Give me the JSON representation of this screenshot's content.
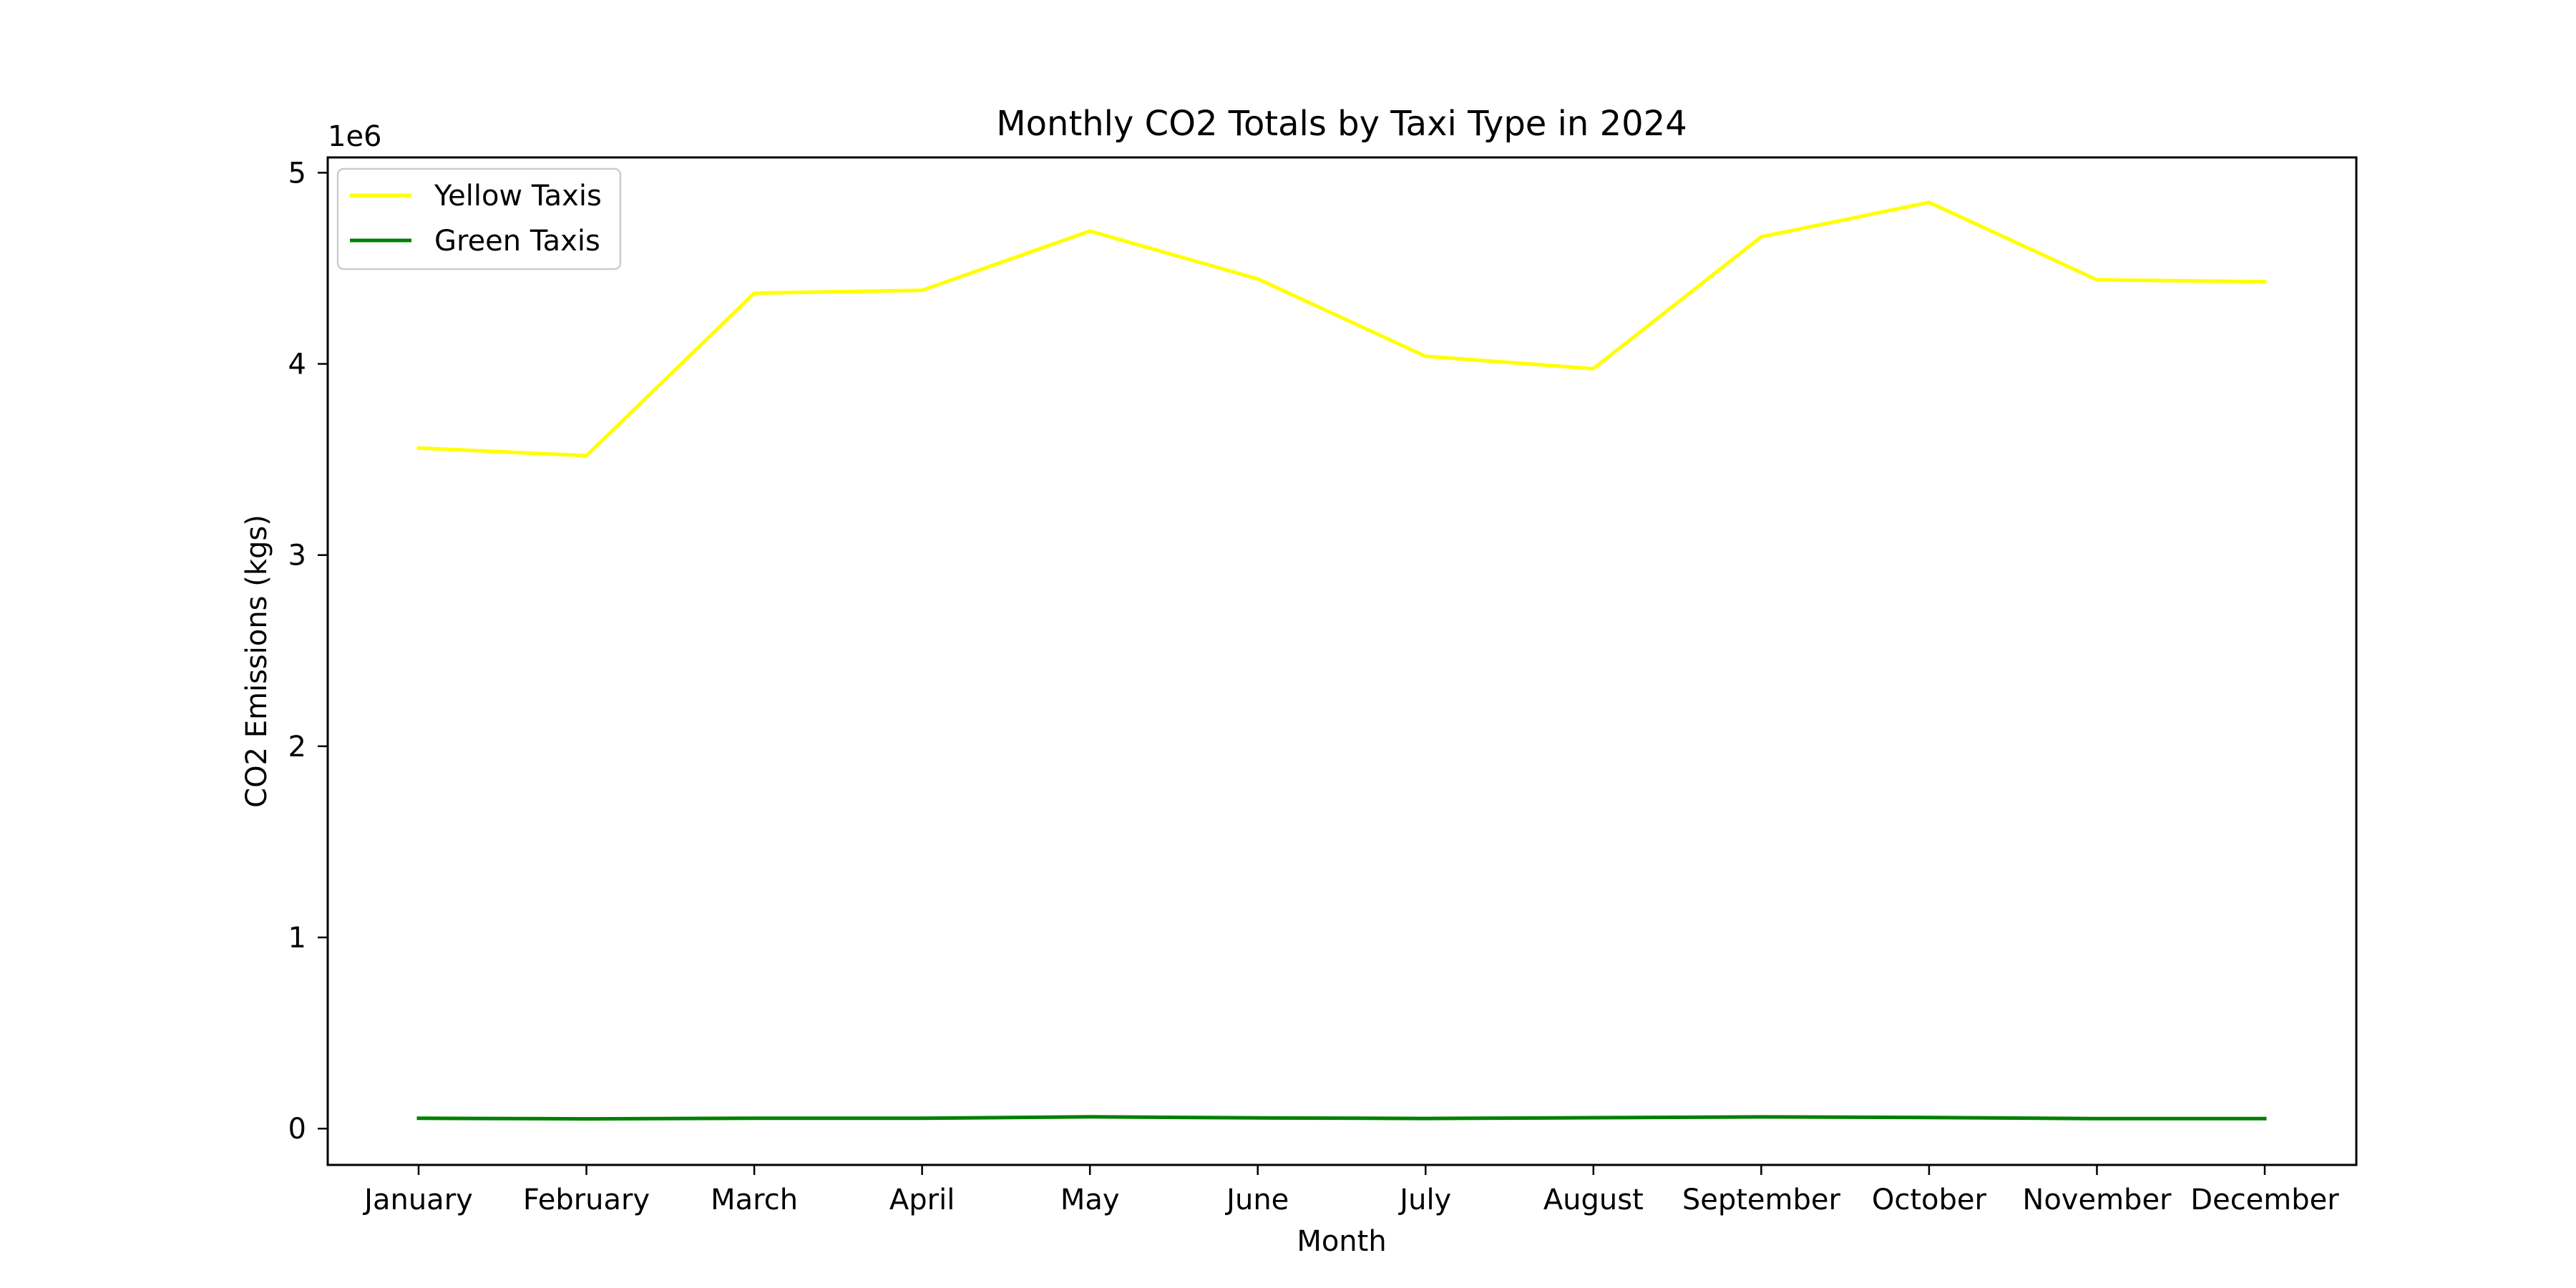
{
  "chart_data": {
    "type": "line",
    "title": "Monthly CO2 Totals by Taxi Type in 2024",
    "xlabel": "Month",
    "ylabel": "CO2 Emissions (kgs)",
    "y_offset_label": "1e6",
    "y_scale_factor": 1000000,
    "categories": [
      "January",
      "February",
      "March",
      "April",
      "May",
      "June",
      "July",
      "August",
      "September",
      "October",
      "November",
      "December"
    ],
    "yticks": [
      0,
      1,
      2,
      3,
      4,
      5
    ],
    "ylim": [
      -190000,
      5080000
    ],
    "grid": false,
    "legend_position": "top-left",
    "series": [
      {
        "name": "Yellow Taxis",
        "color": "#ffff00",
        "values": [
          3560000,
          3520000,
          4370000,
          4385000,
          4695000,
          4445000,
          4040000,
          3975000,
          4665000,
          4845000,
          4440000,
          4430000
        ]
      },
      {
        "name": "Green Taxis",
        "color": "#008000",
        "values": [
          54000,
          51000,
          54000,
          54000,
          62000,
          56000,
          53000,
          57000,
          61000,
          58000,
          52000,
          52000
        ]
      }
    ]
  }
}
